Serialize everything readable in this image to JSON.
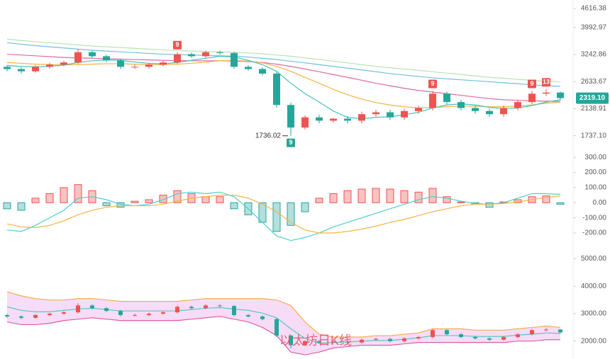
{
  "chart_data": [
    {
      "type": "candlestick",
      "log_scale": true,
      "ylim": [
        1660,
        4930
      ],
      "yticks": [
        4616.38,
        3992.97,
        3242.86,
        2633.67,
        2138.91,
        {
          "value": 1737.1,
          "label": "1737.10"
        }
      ],
      "up_color": "#ef5350",
      "down_color": "#26a69a",
      "opens": [
        2950,
        2900,
        2850,
        2950,
        3000,
        3050,
        3300,
        3200,
        3100,
        2950,
        2950,
        3000,
        3050,
        3250,
        3200,
        3300,
        3280,
        2950,
        2900,
        2800,
        2200,
        1850,
        2000,
        1950,
        1980,
        1950,
        2050,
        2080,
        2000,
        2100,
        2150,
        2400,
        2250,
        2150,
        2100,
        2050,
        2150,
        2250,
        2400,
        2420
      ],
      "highs": [
        2990,
        2940,
        2990,
        3040,
        3090,
        3380,
        3340,
        3240,
        3140,
        3000,
        3040,
        3090,
        3300,
        3290,
        3340,
        3340,
        3310,
        2990,
        2940,
        2840,
        2240,
        2030,
        2040,
        1990,
        2020,
        2090,
        2120,
        2120,
        2140,
        2190,
        2450,
        2440,
        2290,
        2190,
        2140,
        2190,
        2290,
        2450,
        2480,
        2440
      ],
      "lows": [
        2850,
        2800,
        2820,
        2910,
        2960,
        3010,
        3150,
        3060,
        2900,
        2900,
        2910,
        2960,
        3010,
        3160,
        3160,
        3240,
        2910,
        2860,
        2760,
        2150,
        1736.02,
        1820,
        1910,
        1920,
        1910,
        1910,
        2010,
        1960,
        1960,
        2060,
        2110,
        2210,
        2110,
        2060,
        2010,
        2010,
        2110,
        2210,
        2360,
        2280
      ],
      "closes": [
        2900,
        2850,
        2950,
        3000,
        3050,
        3300,
        3200,
        3100,
        2950,
        2950,
        3000,
        3050,
        3250,
        3200,
        3300,
        3280,
        2950,
        2900,
        2800,
        2200,
        1850,
        2000,
        1950,
        1980,
        1950,
        2050,
        2080,
        2000,
        2100,
        2150,
        2400,
        2250,
        2150,
        2100,
        2050,
        2150,
        2250,
        2400,
        2420,
        2319.1
      ],
      "last_price_label": "2319.10",
      "tags": [
        {
          "label": "9",
          "at": 12,
          "side": "above"
        },
        {
          "label": "9",
          "at": 20,
          "side": "below"
        },
        {
          "label": "9",
          "at": 30,
          "side": "above"
        },
        {
          "label": "9",
          "at": 37,
          "side": "above"
        },
        {
          "label": "13",
          "at": 38,
          "side": "above"
        }
      ],
      "series": [
        {
          "color": "#b9e3b1",
          "values": [
            3650,
            3610,
            3580,
            3550,
            3520,
            3490,
            3460,
            3440,
            3420,
            3400,
            3380,
            3360,
            3340,
            3330,
            3320,
            3310,
            3300,
            3280,
            3260,
            3230,
            3200,
            3160,
            3120,
            3080,
            3040,
            3000,
            2960,
            2930,
            2900,
            2870,
            2840,
            2810,
            2780,
            2750,
            2720,
            2700,
            2680,
            2660,
            2640,
            2630
          ]
        },
        {
          "color": "#6cc0dd",
          "values": [
            3550,
            3510,
            3470,
            3440,
            3410,
            3380,
            3350,
            3330,
            3310,
            3290,
            3270,
            3250,
            3240,
            3230,
            3220,
            3210,
            3200,
            3180,
            3150,
            3120,
            3080,
            3040,
            3000,
            2960,
            2920,
            2880,
            2840,
            2800,
            2770,
            2740,
            2710,
            2690,
            2670,
            2650,
            2630,
            2610,
            2590,
            2570,
            2550,
            2540
          ]
        },
        {
          "color": "#de6aa3",
          "values": [
            3250,
            3230,
            3210,
            3190,
            3170,
            3160,
            3150,
            3140,
            3130,
            3120,
            3110,
            3100,
            3095,
            3090,
            3090,
            3090,
            3085,
            3070,
            3050,
            3010,
            2960,
            2900,
            2840,
            2780,
            2720,
            2660,
            2600,
            2550,
            2500,
            2460,
            2430,
            2400,
            2370,
            2340,
            2310,
            2290,
            2280,
            2270,
            2265,
            2260
          ]
        },
        {
          "color": "#f4b344",
          "values": [
            3050,
            3030,
            3010,
            3000,
            2995,
            3000,
            3010,
            3020,
            3020,
            3010,
            3000,
            3000,
            3010,
            3030,
            3060,
            3090,
            3100,
            3080,
            3040,
            2960,
            2850,
            2720,
            2600,
            2480,
            2380,
            2300,
            2240,
            2200,
            2170,
            2150,
            2160,
            2170,
            2180,
            2180,
            2170,
            2170,
            2180,
            2200,
            2230,
            2250
          ]
        },
        {
          "color": "#45c3b8",
          "values": [
            2980,
            2960,
            2950,
            2960,
            2990,
            3050,
            3090,
            3110,
            3100,
            3060,
            3030,
            3020,
            3050,
            3100,
            3150,
            3200,
            3180,
            3100,
            3000,
            2850,
            2600,
            2400,
            2250,
            2100,
            2000,
            1980,
            2000,
            2010,
            2040,
            2080,
            2150,
            2200,
            2220,
            2200,
            2160,
            2140,
            2150,
            2190,
            2250,
            2290
          ]
        }
      ]
    },
    {
      "type": "macd",
      "ylim": [
        -275,
        390
      ],
      "yticks": [
        {
          "value": 300,
          "label": "300.00"
        },
        {
          "value": 200,
          "label": "200.00"
        },
        {
          "value": 100,
          "label": "100.00"
        },
        {
          "value": 0,
          "label": "0.00"
        },
        {
          "value": -100,
          "label": "-100.00"
        },
        {
          "value": -200,
          "label": "-200.00"
        }
      ],
      "up_color": "#ef5350",
      "down_color": "#26a69a",
      "histogram": [
        -40,
        -50,
        30,
        60,
        100,
        120,
        80,
        -20,
        -30,
        10,
        20,
        50,
        80,
        60,
        40,
        40,
        -40,
        -80,
        -130,
        -190,
        -150,
        -60,
        30,
        60,
        80,
        90,
        95,
        90,
        80,
        70,
        95,
        40,
        5,
        -10,
        -30,
        5,
        20,
        40,
        45,
        -10
      ],
      "series": [
        {
          "color": "#4dd0c8",
          "values": [
            -180,
            -190,
            -150,
            -100,
            -50,
            30,
            40,
            20,
            -10,
            -20,
            -10,
            20,
            60,
            70,
            60,
            70,
            40,
            -40,
            -130,
            -220,
            -250,
            -230,
            -200,
            -160,
            -130,
            -100,
            -70,
            -40,
            -10,
            20,
            40,
            30,
            10,
            -5,
            -10,
            0,
            30,
            60,
            60,
            55
          ]
        },
        {
          "color": "#f4b344",
          "values": [
            -140,
            -160,
            -165,
            -150,
            -120,
            -80,
            -50,
            -30,
            -20,
            -20,
            -20,
            -10,
            10,
            30,
            40,
            50,
            50,
            30,
            -10,
            -60,
            -130,
            -180,
            -200,
            -200,
            -190,
            -175,
            -155,
            -130,
            -110,
            -85,
            -60,
            -40,
            -20,
            -10,
            -10,
            -5,
            5,
            20,
            35,
            45
          ]
        }
      ]
    },
    {
      "type": "bollinger",
      "ylim": [
        1400,
        5400
      ],
      "yticks": [
        {
          "value": 5000,
          "label": "5000.00"
        },
        {
          "value": 4000,
          "label": "4000.00"
        },
        {
          "value": 3000,
          "label": "3000.00"
        },
        {
          "value": 2000,
          "label": "2000.00"
        }
      ],
      "band_color": "#f6dcf6",
      "watermark": "以太坊日K线",
      "series": [
        {
          "color": "#f4a742",
          "values": [
            3800,
            3650,
            3550,
            3500,
            3500,
            3550,
            3550,
            3500,
            3450,
            3450,
            3450,
            3450,
            3450,
            3500,
            3550,
            3550,
            3550,
            3550,
            3550,
            3500,
            3300,
            2700,
            2250,
            2150,
            2150,
            2150,
            2200,
            2200,
            2250,
            2300,
            2450,
            2450,
            2450,
            2400,
            2400,
            2400,
            2450,
            2500,
            2550,
            2500
          ]
        },
        {
          "color": "#4dc3c0",
          "values": [
            3250,
            3120,
            3070,
            3070,
            3120,
            3170,
            3200,
            3150,
            3100,
            3100,
            3100,
            3100,
            3100,
            3150,
            3200,
            3220,
            3170,
            3120,
            3020,
            2850,
            2450,
            2100,
            1920,
            1950,
            1970,
            2000,
            2020,
            2020,
            2070,
            2120,
            2200,
            2200,
            2200,
            2170,
            2170,
            2170,
            2220,
            2250,
            2300,
            2280
          ]
        },
        {
          "color": "#d94f9e",
          "values": [
            2700,
            2600,
            2600,
            2650,
            2750,
            2800,
            2850,
            2800,
            2750,
            2750,
            2750,
            2750,
            2750,
            2800,
            2850,
            2900,
            2800,
            2700,
            2500,
            2200,
            1600,
            1500,
            1600,
            1750,
            1800,
            1850,
            1850,
            1850,
            1900,
            1950,
            1950,
            1950,
            1950,
            1950,
            1950,
            1950,
            2000,
            2000,
            2050,
            2050
          ]
        }
      ]
    }
  ]
}
